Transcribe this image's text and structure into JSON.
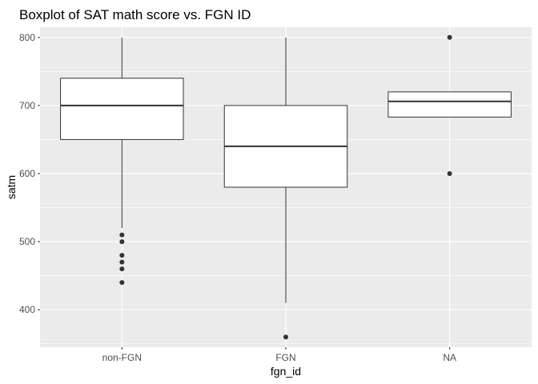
{
  "chart_data": {
    "type": "boxplot",
    "title": "Boxplot of SAT math score vs. FGN ID",
    "xlabel": "fgn_id",
    "ylabel": "satm",
    "categories": [
      "non-FGN",
      "FGN",
      "NA"
    ],
    "ylim": [
      345,
      815
    ],
    "yticks": [
      400,
      500,
      600,
      700,
      800
    ],
    "grid": true,
    "boxes": [
      {
        "category": "non-FGN",
        "whisker_low": 520,
        "q1": 650,
        "median": 700,
        "q3": 740,
        "whisker_high": 800,
        "outliers": [
          510,
          500,
          480,
          470,
          460,
          440
        ]
      },
      {
        "category": "FGN",
        "whisker_low": 410,
        "q1": 580,
        "median": 640,
        "q3": 700,
        "whisker_high": 800,
        "outliers": [
          360
        ]
      },
      {
        "category": "NA",
        "whisker_low": 683,
        "q1": 683,
        "median": 706,
        "q3": 720,
        "whisker_high": 720,
        "outliers": [
          800,
          600
        ]
      }
    ],
    "colors": {
      "panel": "#ebebeb",
      "grid_major": "#ffffff",
      "box_fill": "#ffffff",
      "box_line": "#333333",
      "point": "#333333"
    }
  }
}
